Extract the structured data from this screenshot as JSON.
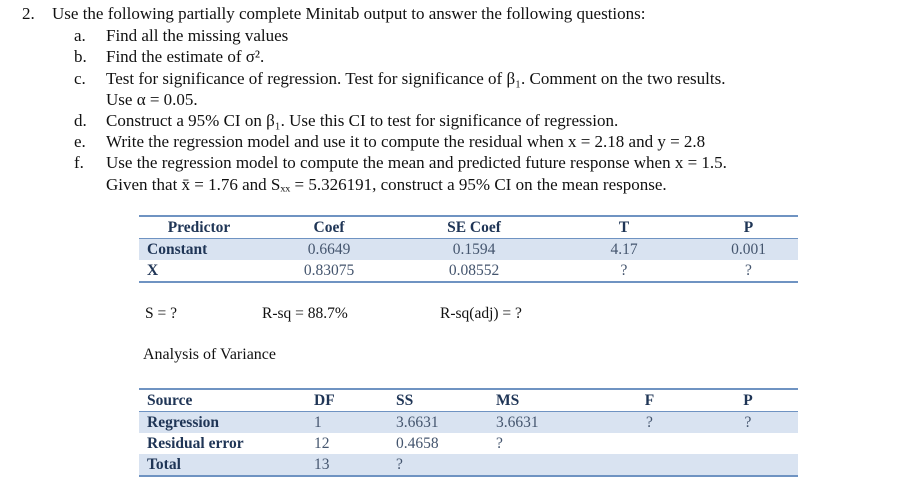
{
  "question": {
    "number": "2.",
    "intro": "Use the following partially complete Minitab output to answer the following questions:",
    "parts": [
      {
        "letter": "a.",
        "text": "Find all the missing values"
      },
      {
        "letter": "b.",
        "text": "Find the estimate of σ²."
      },
      {
        "letter": "c.",
        "text": "Test for significance of regression. Test for significance of β₁. Comment on the two results.",
        "continuation": "Use α = 0.05."
      },
      {
        "letter": "d.",
        "text": "Construct a 95% CI on β₁. Use this CI to test for significance of regression."
      },
      {
        "letter": "e.",
        "text": "Write the regression model and use it to compute the residual when x = 2.18 and y = 2.8"
      },
      {
        "letter": "f.",
        "text": "Use the regression model to compute the mean and predicted future response when x = 1.5.",
        "continuation": "Given that x̄ = 1.76 and Sₓₓ = 5.326191, construct a 95% CI on the mean response."
      }
    ]
  },
  "coef_table": {
    "headers": [
      "Predictor",
      "Coef",
      "SE Coef",
      "T",
      "P"
    ],
    "rows": [
      [
        "Constant",
        "0.6649",
        "0.1594",
        "4.17",
        "0.001"
      ],
      [
        "X",
        "0.83075",
        "0.08552",
        "?",
        "?"
      ]
    ]
  },
  "summary": {
    "s": "S = ?",
    "rsq": "R-sq = 88.7%",
    "rsq_adj": "R-sq(adj) = ?"
  },
  "anova_title": "Analysis of Variance",
  "anova_table": {
    "headers": [
      "Source",
      "DF",
      "SS",
      "MS",
      "F",
      "P"
    ],
    "rows": [
      [
        "Regression",
        "1",
        "3.6631",
        "3.6631",
        "?",
        "?"
      ],
      [
        "Residual error",
        "12",
        "0.4658",
        "?",
        "",
        ""
      ],
      [
        "Total",
        "13",
        "?",
        "",
        "",
        ""
      ]
    ]
  }
}
